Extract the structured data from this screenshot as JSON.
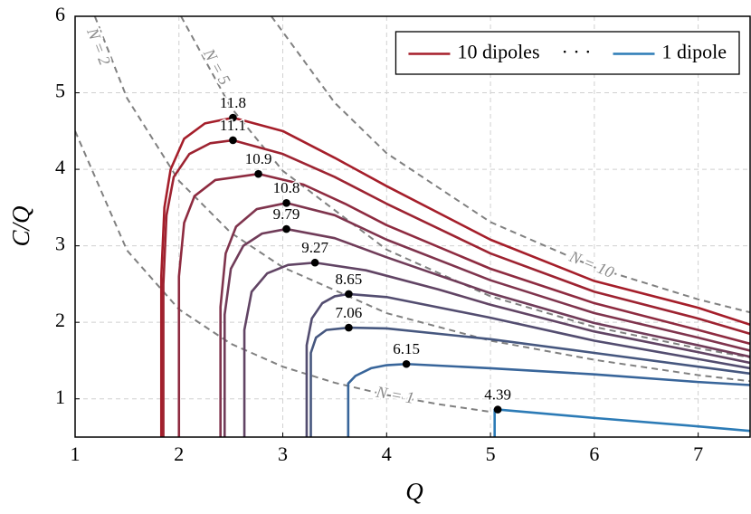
{
  "chart_data": {
    "type": "line",
    "xlabel": "Q",
    "ylabel": "C/Q",
    "xlim": [
      1,
      7.5
    ],
    "ylim": [
      0.5,
      6
    ],
    "xticks": [
      1,
      2,
      3,
      4,
      5,
      6,
      7
    ],
    "yticks": [
      1,
      2,
      3,
      4,
      5,
      6
    ],
    "grid": true,
    "series": [
      {
        "color": "#a51e2a",
        "x": [
          1.83,
          1.83,
          1.86,
          1.92,
          2.05,
          2.25,
          2.52,
          3,
          3.5,
          4,
          5,
          6,
          7,
          7.5
        ],
        "values": [
          0.5,
          2.6,
          3.5,
          4.0,
          4.4,
          4.6,
          4.675,
          4.5,
          4.15,
          3.78,
          3.08,
          2.54,
          2.19,
          1.97
        ]
      },
      {
        "color": "#9d2331",
        "x": [
          1.85,
          1.85,
          1.88,
          1.95,
          2.1,
          2.3,
          2.52,
          3,
          3.5,
          4,
          5,
          6,
          7,
          7.5
        ],
        "values": [
          0.5,
          2.5,
          3.4,
          3.9,
          4.2,
          4.34,
          4.38,
          4.2,
          3.9,
          3.55,
          2.9,
          2.4,
          2.05,
          1.85
        ]
      },
      {
        "color": "#8e2b40",
        "x": [
          2.0,
          2.0,
          2.05,
          2.15,
          2.35,
          2.765,
          3.2,
          3.6,
          4,
          5,
          6,
          7,
          7.5
        ],
        "values": [
          0.5,
          2.6,
          3.3,
          3.65,
          3.86,
          3.94,
          3.8,
          3.55,
          3.27,
          2.7,
          2.25,
          1.9,
          1.72
        ]
      },
      {
        "color": "#7f344d",
        "x": [
          2.4,
          2.4,
          2.45,
          2.55,
          2.75,
          3.035,
          3.5,
          4,
          5,
          6,
          7,
          7.5
        ],
        "values": [
          0.5,
          2.2,
          2.9,
          3.25,
          3.48,
          3.56,
          3.4,
          3.08,
          2.55,
          2.12,
          1.8,
          1.63
        ]
      },
      {
        "color": "#703c59",
        "x": [
          2.44,
          2.44,
          2.5,
          2.62,
          2.8,
          3.035,
          3.5,
          4,
          5,
          6,
          7,
          7.5
        ],
        "values": [
          0.5,
          2.1,
          2.7,
          3.0,
          3.16,
          3.22,
          3.1,
          2.85,
          2.38,
          1.99,
          1.7,
          1.55
        ]
      },
      {
        "color": "#614464",
        "x": [
          2.63,
          2.63,
          2.7,
          2.85,
          3.05,
          3.31,
          3.8,
          4.5,
          5,
          6,
          7,
          7.5
        ],
        "values": [
          0.5,
          1.9,
          2.4,
          2.64,
          2.75,
          2.78,
          2.68,
          2.43,
          2.23,
          1.88,
          1.61,
          1.47
        ]
      },
      {
        "color": "#534d70",
        "x": [
          3.23,
          3.23,
          3.28,
          3.38,
          3.5,
          3.635,
          4,
          5,
          6,
          7,
          7.5
        ],
        "values": [
          0.5,
          1.7,
          2.05,
          2.25,
          2.34,
          2.37,
          2.33,
          2.06,
          1.76,
          1.52,
          1.4
        ]
      },
      {
        "color": "#46577f",
        "x": [
          3.27,
          3.27,
          3.32,
          3.42,
          3.635,
          4,
          5,
          6,
          7,
          7.5
        ],
        "values": [
          0.5,
          1.6,
          1.8,
          1.9,
          1.93,
          1.92,
          1.78,
          1.6,
          1.42,
          1.33
        ]
      },
      {
        "color": "#38659a",
        "x": [
          3.63,
          3.63,
          3.7,
          3.85,
          4.0,
          4.19,
          5,
          6,
          7,
          7.5
        ],
        "values": [
          0.5,
          1.2,
          1.3,
          1.4,
          1.44,
          1.455,
          1.4,
          1.32,
          1.22,
          1.18
        ]
      },
      {
        "color": "#2c7bb6",
        "x": [
          5.04,
          5.04,
          5.07,
          6,
          7,
          7.5
        ],
        "values": [
          0.5,
          0.86,
          0.86,
          0.75,
          0.64,
          0.58
        ]
      }
    ],
    "peaks": {
      "x": [
        2.52,
        2.52,
        2.765,
        3.035,
        3.035,
        3.31,
        3.635,
        3.635,
        4.19,
        5.07
      ],
      "values": [
        4.675,
        4.38,
        3.94,
        3.56,
        3.22,
        2.78,
        2.37,
        1.93,
        1.455,
        0.86
      ],
      "labels": [
        11.8,
        11.1,
        10.9,
        10.8,
        9.79,
        9.27,
        8.65,
        7.06,
        6.15,
        4.39
      ]
    },
    "reference_color": "#808080",
    "reference_curves": [
      {
        "label": "N = 1",
        "x": [
          1,
          1.5,
          2,
          2.5,
          3,
          3.5,
          4,
          4.5,
          5
        ],
        "values": [
          4.5,
          2.94,
          2.17,
          1.72,
          1.42,
          1.21,
          1.05,
          0.93,
          0.83
        ]
      },
      {
        "label": "N = 2",
        "x": [
          1.19,
          1.5,
          2,
          2.5,
          3,
          4,
          5,
          6,
          7,
          7.5
        ],
        "values": [
          6,
          4.93,
          3.85,
          3.17,
          2.72,
          2.12,
          1.76,
          1.51,
          1.31,
          1.23
        ]
      },
      {
        "label": "N = 5",
        "x": [
          2.02,
          2.5,
          3,
          4,
          5,
          6,
          7,
          7.5
        ],
        "values": [
          6,
          4.81,
          3.98,
          2.95,
          2.34,
          1.94,
          1.66,
          1.54
        ]
      },
      {
        "label": "N = 10",
        "x": [
          2.89,
          3.5,
          4,
          5,
          6,
          7,
          7.5
        ],
        "values": [
          6,
          4.87,
          4.21,
          3.31,
          2.72,
          2.3,
          2.13
        ]
      }
    ],
    "legend": {
      "position": "upper right",
      "entries": [
        {
          "label": "10 dipoles",
          "color": "#a51e2a"
        },
        {
          "label": "· · ·"
        },
        {
          "label": "1 dipole",
          "color": "#2c7bb6"
        }
      ]
    }
  }
}
